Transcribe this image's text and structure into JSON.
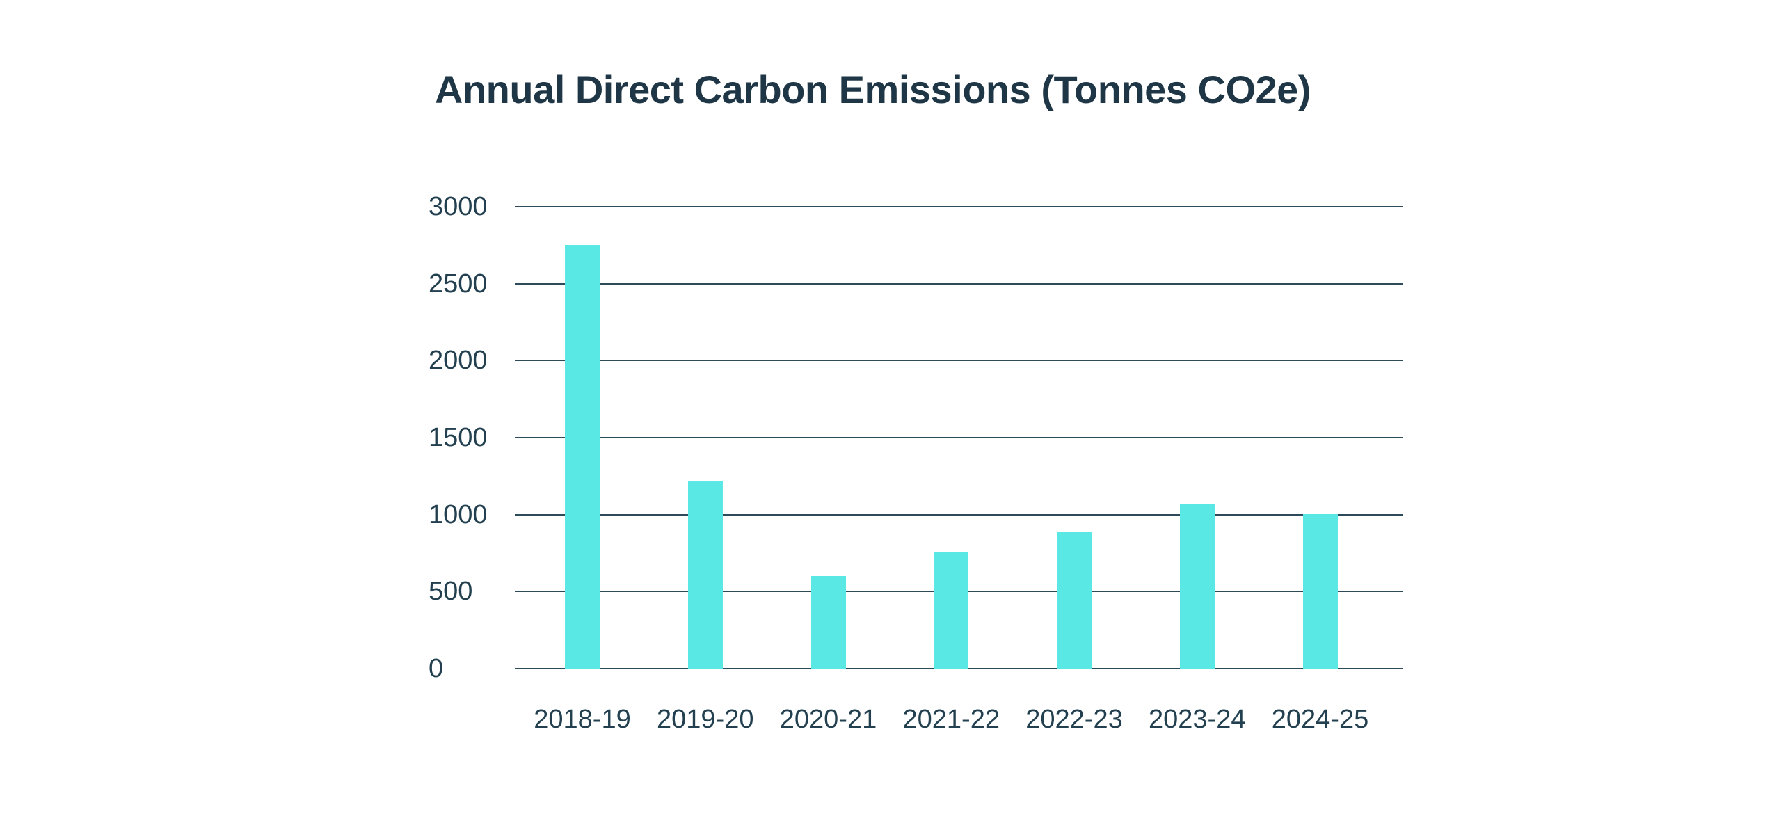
{
  "chart_data": {
    "type": "bar",
    "title": "Annual Direct Carbon Emissions (Tonnes CO2e)",
    "categories": [
      "2018-19",
      "2019-20",
      "2020-21",
      "2021-22",
      "2022-23",
      "2023-24",
      "2024-25"
    ],
    "values": [
      2750,
      1220,
      600,
      760,
      890,
      1070,
      1005
    ],
    "xlabel": "",
    "ylabel": "",
    "ylim": [
      0,
      3000
    ],
    "yticks": [
      0,
      500,
      1000,
      1500,
      2000,
      2500,
      3000
    ],
    "grid": "horizontal",
    "legend": "none",
    "colors": {
      "bar": "#59E8E3",
      "gridline": "#2C4A57",
      "tick_text": "#22404F",
      "title_text": "#1E3645",
      "background": "#FFFFFF"
    }
  }
}
